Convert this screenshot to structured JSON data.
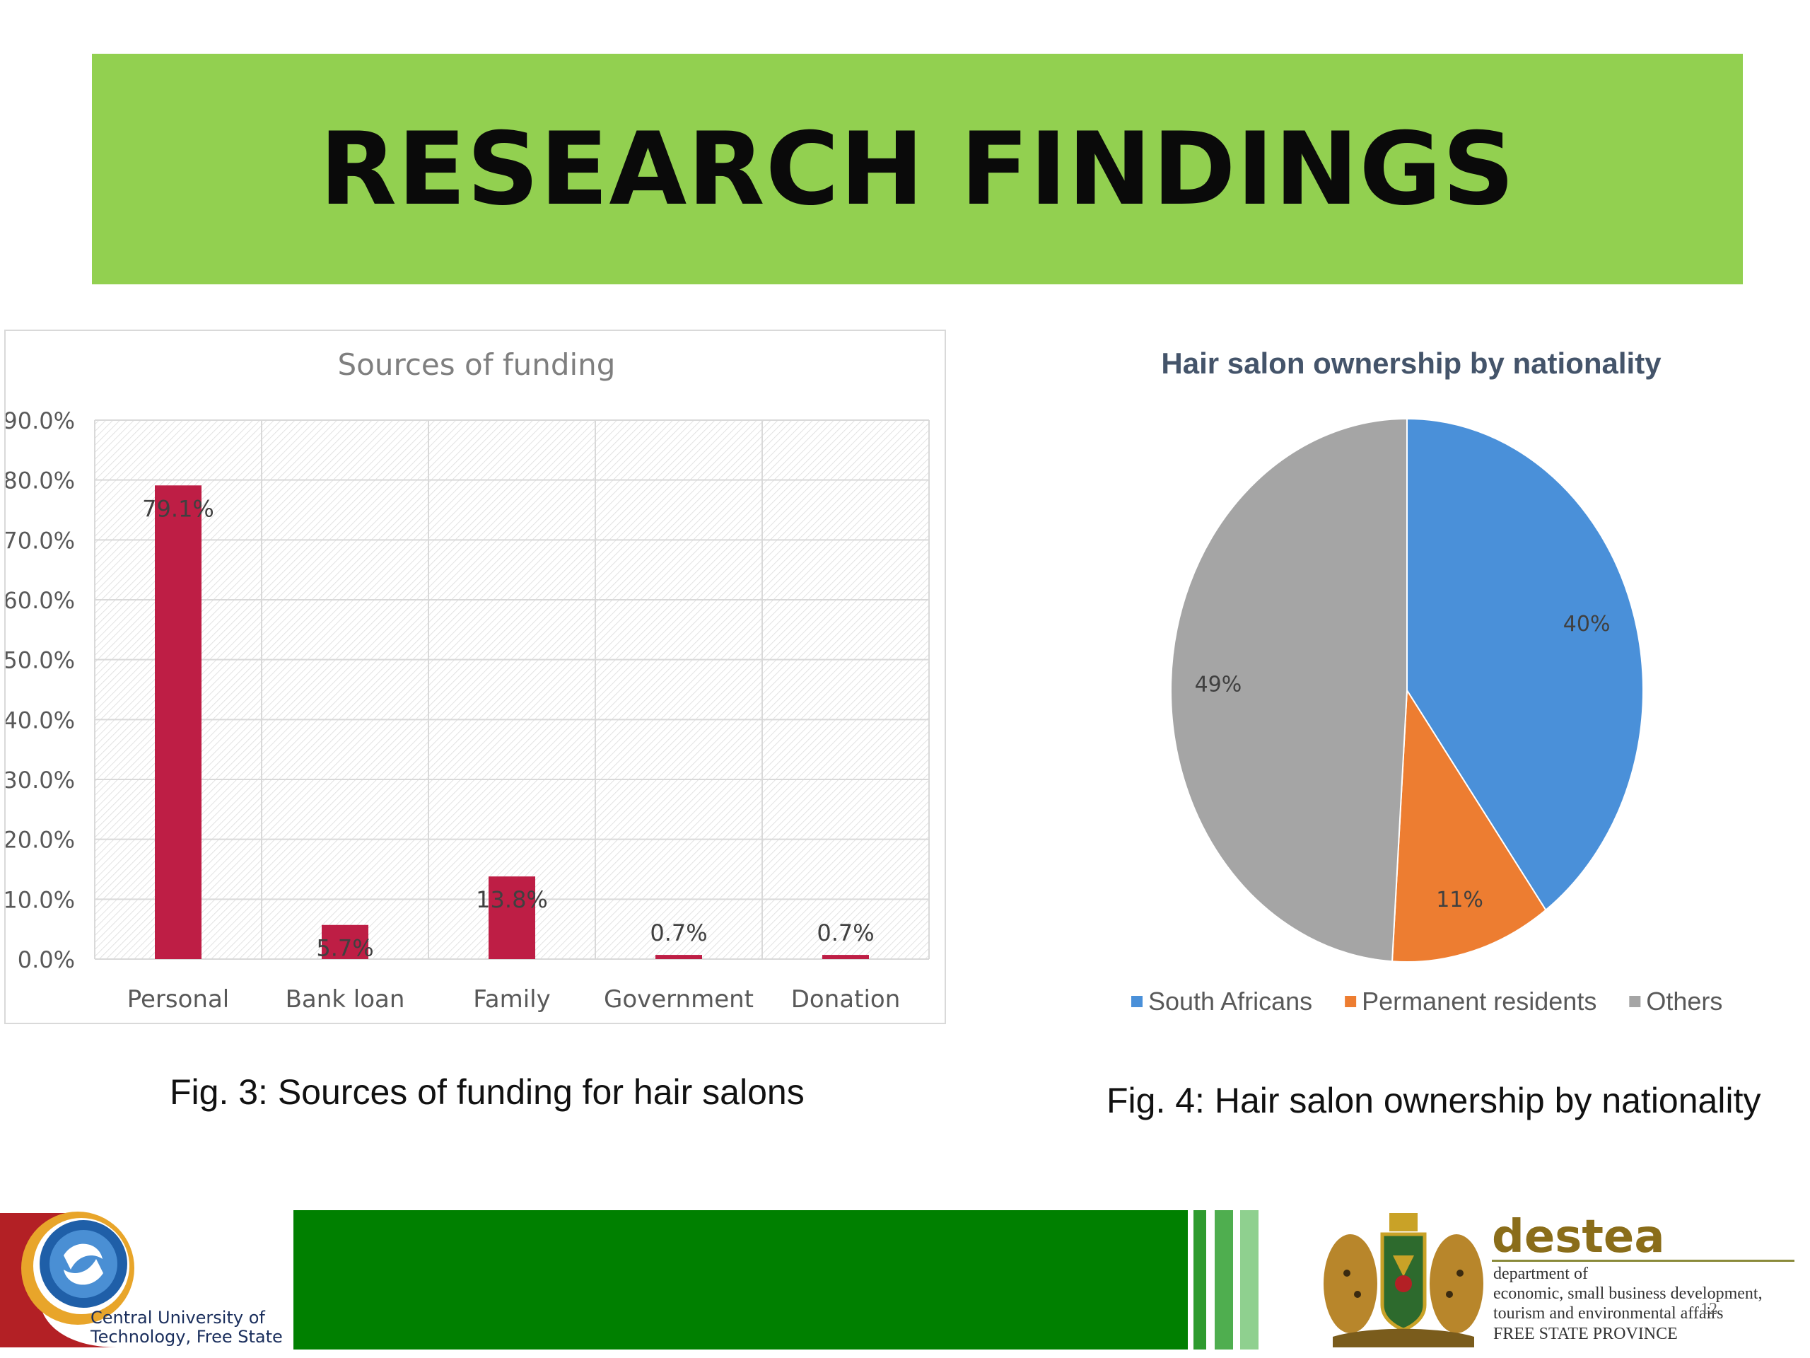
{
  "slide": {
    "title": "RESEARCH FINDINGS"
  },
  "colors": {
    "banner": "#92d050",
    "bar": "#be1e45",
    "pie_blue": "#4a90d9",
    "pie_orange": "#ed7d31",
    "pie_gray": "#a5a5a5",
    "footer_green": "#008000"
  },
  "chart_data": [
    {
      "type": "bar",
      "title": "Sources of funding",
      "categories": [
        "Personal",
        "Bank loan",
        "Family",
        "Government",
        "Donation"
      ],
      "values": [
        79.1,
        5.7,
        13.8,
        0.7,
        0.7
      ],
      "data_labels": [
        "79.1%",
        "5.7%",
        "13.8%",
        "0.7%",
        "0.7%"
      ],
      "yticks": [
        "0.0%",
        "10.0%",
        "20.0%",
        "30.0%",
        "40.0%",
        "50.0%",
        "60.0%",
        "70.0%",
        "80.0%",
        "90.0%"
      ],
      "ylim": [
        0,
        90
      ],
      "grid": true,
      "legend": "none",
      "caption": "Fig. 3: Sources of funding for hair salons"
    },
    {
      "type": "pie",
      "title": "Hair salon ownership by nationality",
      "categories": [
        "South Africans",
        "Permanent residents",
        "Others"
      ],
      "values": [
        40,
        11,
        49
      ],
      "data_labels": [
        "40%",
        "11%",
        "49%"
      ],
      "colors": [
        "#4a90d9",
        "#ed7d31",
        "#a5a5a5"
      ],
      "legend": "bottom",
      "caption": "Fig. 4: Hair salon ownership by nationality"
    }
  ],
  "footer": {
    "cut_name": "Central University of\nTechnology, Free State",
    "destea_name": "destea",
    "destea_desc": "department of\neconomic, small business development,\ntourism and environmental affairs",
    "province": "FREE STATE PROVINCE",
    "page_number": "12"
  }
}
